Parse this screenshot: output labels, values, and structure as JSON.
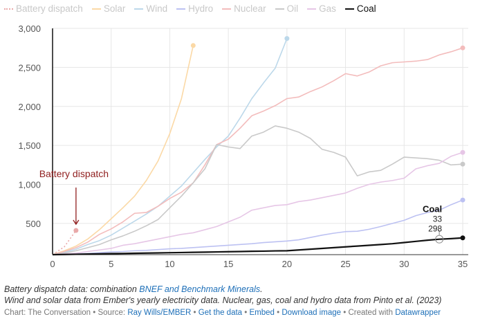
{
  "chart_data": {
    "type": "line",
    "xlim": [
      0,
      35
    ],
    "ylim": [
      100,
      3000
    ],
    "x_ticks": [
      "0",
      "5",
      "10",
      "15",
      "20",
      "25",
      "30",
      "35"
    ],
    "y_ticks": [
      "500",
      "1,000",
      "1,500",
      "2,000",
      "2,500",
      "3,000"
    ],
    "grid": true,
    "legend_position": "top",
    "series": [
      {
        "name": "Battery dispatch",
        "color": "#e9a9a9",
        "dashed": true,
        "values": [
          100,
          200,
          410
        ]
      },
      {
        "name": "Solar",
        "color": "#fbd9a6",
        "values": [
          100,
          150,
          210,
          300,
          420,
          560,
          700,
          850,
          1050,
          1300,
          1650,
          2100,
          2780
        ]
      },
      {
        "name": "Wind",
        "color": "#bcd8ea",
        "values": [
          100,
          130,
          170,
          230,
          280,
          350,
          440,
          530,
          620,
          720,
          850,
          980,
          1150,
          1320,
          1480,
          1620,
          1850,
          2100,
          2300,
          2490,
          2870
        ]
      },
      {
        "name": "Hydro",
        "color": "#bcc1f2",
        "values": [
          100,
          105,
          110,
          115,
          125,
          135,
          140,
          150,
          155,
          165,
          175,
          180,
          190,
          200,
          210,
          220,
          230,
          240,
          255,
          265,
          275,
          290,
          320,
          350,
          375,
          395,
          400,
          425,
          460,
          500,
          540,
          600,
          640,
          670,
          740,
          800
        ]
      },
      {
        "name": "Nuclear",
        "color": "#f3bcbc",
        "values": [
          100,
          140,
          190,
          260,
          360,
          430,
          520,
          630,
          640,
          720,
          820,
          900,
          1020,
          1250,
          1510,
          1580,
          1720,
          1880,
          1940,
          2010,
          2100,
          2120,
          2190,
          2250,
          2330,
          2420,
          2390,
          2440,
          2520,
          2560,
          2570,
          2580,
          2600,
          2660,
          2700,
          2750
        ]
      },
      {
        "name": "Oil",
        "color": "#c9c9c9",
        "values": [
          100,
          120,
          150,
          190,
          230,
          290,
          340,
          400,
          470,
          550,
          700,
          850,
          1020,
          1200,
          1510,
          1480,
          1460,
          1620,
          1670,
          1750,
          1720,
          1670,
          1590,
          1450,
          1410,
          1350,
          1110,
          1160,
          1180,
          1260,
          1350,
          1340,
          1330,
          1310,
          1250,
          1260
        ]
      },
      {
        "name": "Gas",
        "color": "#e6c6e6",
        "values": [
          100,
          110,
          120,
          140,
          160,
          180,
          220,
          240,
          270,
          300,
          330,
          360,
          380,
          420,
          460,
          520,
          580,
          670,
          700,
          730,
          740,
          780,
          800,
          830,
          860,
          890,
          950,
          1000,
          1030,
          1050,
          1080,
          1200,
          1240,
          1270,
          1360,
          1410
        ]
      },
      {
        "name": "Coal",
        "color": "#111111",
        "values": [
          100,
          102,
          105,
          108,
          110,
          113,
          115,
          118,
          120,
          122,
          125,
          127,
          130,
          132,
          135,
          138,
          140,
          143,
          145,
          148,
          150,
          160,
          170,
          180,
          190,
          200,
          210,
          220,
          230,
          240,
          255,
          270,
          285,
          298,
          305,
          315
        ]
      }
    ],
    "annotations": [
      {
        "text": "Battery dispatch",
        "color": "#8f1d1d",
        "x": 2,
        "y": 410
      }
    ],
    "tooltip": {
      "series": "Coal",
      "x": "33",
      "y": "298"
    }
  },
  "notes": {
    "line1_prefix": "Battery dispatch data: combination ",
    "line1_link": "BNEF and Benchmark Minerals",
    "line1_suffix": ".",
    "line2": "Wind and solar data from Ember's yearly electricity data. Nuclear, gas, coal and hydro data from Pinto et al. (2023)"
  },
  "credits": {
    "chart": "Chart: The Conversation • Source: ",
    "source_link": "Ray Wills/EMBER",
    "get_data": "Get the data",
    "embed": "Embed",
    "download": "Download image",
    "created": "Created with ",
    "datawrapper": "Datawrapper",
    "sep": " • "
  }
}
